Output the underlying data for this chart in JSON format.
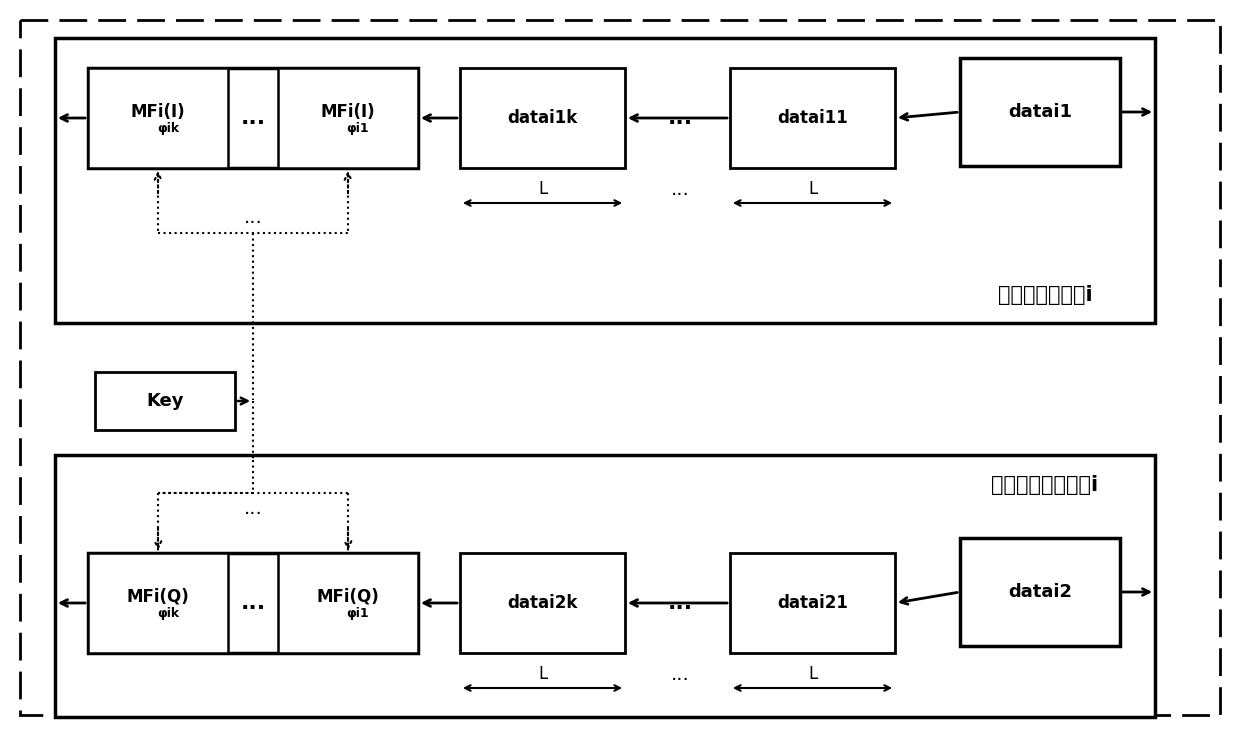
{
  "bg_color": "#ffffff",
  "title1": "同相匹配滤波器i",
  "title2": "正交相匹配滤波器i",
  "label_mfi_Ik": "MFi(I)",
  "label_phiik": "φik",
  "label_phii1": "φi1",
  "label_mfi_Qk": "MFi(Q)",
  "label_datai1k": "datai1k",
  "label_datai11": "datai11",
  "label_datai2k": "datai2k",
  "label_datai21": "datai21",
  "label_datai1": "datai1",
  "label_datai2": "datai2",
  "label_key": "Key",
  "label_L": "L"
}
